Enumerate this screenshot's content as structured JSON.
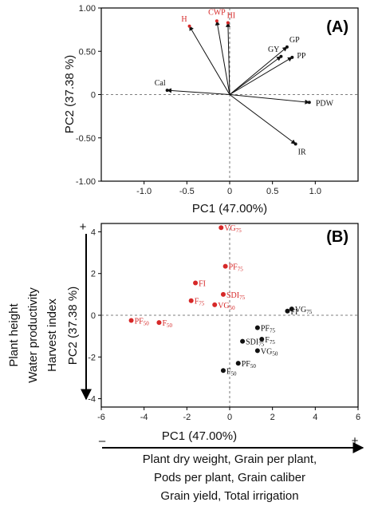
{
  "colors": {
    "red": "#d62828",
    "black": "#111111"
  },
  "chart_data": [
    {
      "panel": "(A)",
      "type": "scatter",
      "xlabel": "PC1 (47.00%)",
      "ylabel": "PC2 (37.38 %)",
      "xlim": [
        -1.5,
        1.5
      ],
      "ylim": [
        -1.0,
        1.0
      ],
      "xticks": [
        "-1.0",
        "-0.5",
        "0",
        "0.5",
        "1.0"
      ],
      "xtick_values": [
        -1.0,
        -0.5,
        0,
        0.5,
        1.0
      ],
      "yticks": [
        "-1.00",
        "-0.50",
        "0",
        "0.50",
        "1.00"
      ],
      "ytick_values": [
        -1.0,
        -0.5,
        0,
        0.5,
        1.0
      ],
      "vectors": [
        {
          "label": "H",
          "x": -0.47,
          "y": 0.79,
          "color": "red"
        },
        {
          "label": "CWP",
          "x": -0.15,
          "y": 0.85,
          "color": "red"
        },
        {
          "label": "HI",
          "x": -0.02,
          "y": 0.83,
          "color": "red"
        },
        {
          "label": "GP",
          "x": 0.67,
          "y": 0.55,
          "color": "black"
        },
        {
          "label": "GY",
          "x": 0.6,
          "y": 0.44,
          "color": "black"
        },
        {
          "label": "PP",
          "x": 0.73,
          "y": 0.43,
          "color": "black"
        },
        {
          "label": "Cal",
          "x": -0.73,
          "y": 0.05,
          "color": "black"
        },
        {
          "label": "PDW",
          "x": 0.93,
          "y": -0.09,
          "color": "black"
        },
        {
          "label": "IR",
          "x": 0.77,
          "y": -0.57,
          "color": "black"
        }
      ]
    },
    {
      "panel": "(B)",
      "type": "scatter",
      "xlabel": "PC1 (47.00%)",
      "ylabel": "PC2 (37.38 %)",
      "xlim": [
        -6,
        6
      ],
      "ylim": [
        -4.4,
        4.4
      ],
      "xticks": [
        "-6",
        "-4",
        "-2",
        "0",
        "2",
        "4",
        "6"
      ],
      "xtick_values": [
        -6,
        -4,
        -2,
        0,
        2,
        4,
        6
      ],
      "yticks": [
        "-4",
        "-2",
        "0",
        "2",
        "4"
      ],
      "ytick_values": [
        -4,
        -2,
        0,
        2,
        4
      ],
      "points": [
        {
          "label": "VG",
          "sub": "75",
          "x": -0.4,
          "y": 4.2,
          "color": "red"
        },
        {
          "label": "PF",
          "sub": "75",
          "x": -0.2,
          "y": 2.35,
          "color": "red"
        },
        {
          "label": "FI",
          "sub": "",
          "x": -1.6,
          "y": 1.55,
          "color": "red"
        },
        {
          "label": "SDI",
          "sub": "75",
          "x": -0.3,
          "y": 1.0,
          "color": "red"
        },
        {
          "label": "F",
          "sub": "75",
          "x": -1.8,
          "y": 0.7,
          "color": "red"
        },
        {
          "label": "VG",
          "sub": "50",
          "x": -0.7,
          "y": 0.5,
          "color": "red"
        },
        {
          "label": "PF",
          "sub": "50",
          "x": -4.6,
          "y": -0.25,
          "color": "red"
        },
        {
          "label": "F",
          "sub": "50",
          "x": -3.3,
          "y": -0.35,
          "color": "red"
        },
        {
          "label": "VG",
          "sub": "75",
          "x": 2.9,
          "y": 0.3,
          "color": "black"
        },
        {
          "label": "FI",
          "sub": "",
          "x": 2.7,
          "y": 0.2,
          "color": "black"
        },
        {
          "label": "PF",
          "sub": "75",
          "x": 1.3,
          "y": -0.6,
          "color": "black"
        },
        {
          "label": "F",
          "sub": "75",
          "x": 1.5,
          "y": -1.15,
          "color": "black"
        },
        {
          "label": "SDI",
          "sub": "75",
          "x": 0.6,
          "y": -1.25,
          "color": "black"
        },
        {
          "label": "VG",
          "sub": "50",
          "x": 1.3,
          "y": -1.7,
          "color": "black"
        },
        {
          "label": "PF",
          "sub": "50",
          "x": 0.4,
          "y": -2.3,
          "color": "black"
        },
        {
          "label": "F",
          "sub": "50",
          "x": -0.3,
          "y": -2.65,
          "color": "black"
        }
      ],
      "y_side_labels": [
        "Plant height",
        "Water productivity",
        "Harvest index"
      ],
      "x_side_labels": [
        "Plant dry weight, Grain per plant,",
        "Pods per plant, Grain caliber",
        "Grain yield, Total irrigation"
      ],
      "plus_sign": "+",
      "minus_sign": "–"
    }
  ]
}
